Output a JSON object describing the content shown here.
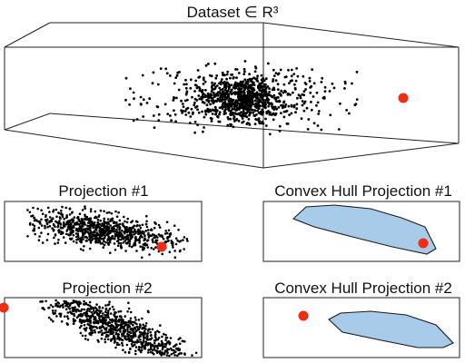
{
  "figure": {
    "top_title": "Dataset ∈ R³",
    "panels": [
      {
        "title": "Projection #1"
      },
      {
        "title": "Convex Hull Projection #1"
      },
      {
        "title": "Projection #2"
      },
      {
        "title": "Convex Hull Projection #2"
      }
    ]
  },
  "colors": {
    "points": "#000000",
    "outlier": "#ee2d12",
    "hull_fill": "#a9cbea",
    "frame": "#222222"
  }
}
